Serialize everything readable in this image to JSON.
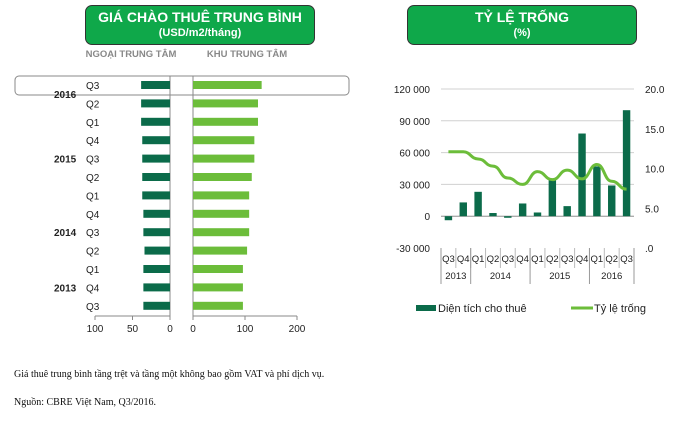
{
  "chart_data": [
    {
      "type": "bar",
      "orientation": "horizontal",
      "title": "GIÁ CHÀO THUÊ TRUNG BÌNH",
      "subtitle": "(USD/m2/tháng)",
      "categories": [
        "Q3",
        "Q2",
        "Q1",
        "Q4",
        "Q3",
        "Q2",
        "Q1",
        "Q4",
        "Q3",
        "Q2",
        "Q1",
        "Q4",
        "Q3"
      ],
      "year_labels": [
        {
          "label": "2016",
          "row": 0.5
        },
        {
          "label": "2015",
          "row": 4
        },
        {
          "label": "2014",
          "row": 8
        },
        {
          "label": "2013",
          "row": 11
        }
      ],
      "highlighted_category": "Q3 2016",
      "series": [
        {
          "name": "NGOẠI TRUNG TÂM",
          "color": "#0b6b4a",
          "values": [
            38.5,
            38.5,
            38.5,
            37,
            37,
            37,
            37,
            35.5,
            35.5,
            34,
            35.5,
            35.5,
            35.5
          ],
          "xlim": [
            100,
            0
          ],
          "ticks": [
            "100",
            "50",
            "0"
          ]
        },
        {
          "name": "KHU TRUNG TÂM",
          "color": "#6cbd3a",
          "values": [
            132,
            125,
            125,
            118,
            118,
            113,
            108,
            108,
            108,
            104,
            96,
            96,
            96
          ],
          "xlim": [
            0,
            200
          ],
          "ticks": [
            "0",
            "100",
            "200"
          ]
        }
      ]
    },
    {
      "type": "bar+line",
      "title": "TỶ LỆ TRỐNG",
      "subtitle": "(%)",
      "categories": [
        "Q3",
        "Q4",
        "Q1",
        "Q2",
        "Q3",
        "Q4",
        "Q1",
        "Q2",
        "Q3",
        "Q4",
        "Q1",
        "Q2",
        "Q3"
      ],
      "year_groups": [
        {
          "label": "2013",
          "span": 2
        },
        {
          "label": "2014",
          "span": 4
        },
        {
          "label": "2015",
          "span": 4
        },
        {
          "label": "2016",
          "span": 3
        }
      ],
      "y_left": {
        "lim": [
          -30000,
          120000
        ],
        "ticks": [
          "-30 000",
          "0",
          "30 000",
          "60 000",
          "90 000",
          "120 000"
        ]
      },
      "y_right": {
        "lim": [
          0,
          20
        ],
        "ticks": [
          ".0",
          "5.0",
          "10.0",
          "15.0",
          "20.0"
        ]
      },
      "grid": true,
      "legend": "bottom",
      "series": [
        {
          "name": "Diện tích cho thuê",
          "type": "bar",
          "axis": "left",
          "color": "#0b6b4a",
          "values": [
            -3800,
            13000,
            23000,
            3000,
            -1500,
            12000,
            3500,
            35000,
            9500,
            78000,
            47000,
            29000,
            100000
          ]
        },
        {
          "name": "Tỷ lệ trống",
          "type": "line",
          "axis": "right",
          "color": "#6cbd3a",
          "values": [
            12.1,
            12.1,
            11.2,
            10.3,
            8.8,
            8.0,
            9.6,
            8.6,
            9.8,
            8.7,
            10.5,
            8.4,
            7.4
          ]
        }
      ]
    }
  ],
  "notes": [
    "Giá thuê trung bình tầng trệt và tầng một không bao gồm VAT và phí dịch vụ.",
    "Nguồn: CBRE Việt Nam, Q3/2016."
  ]
}
